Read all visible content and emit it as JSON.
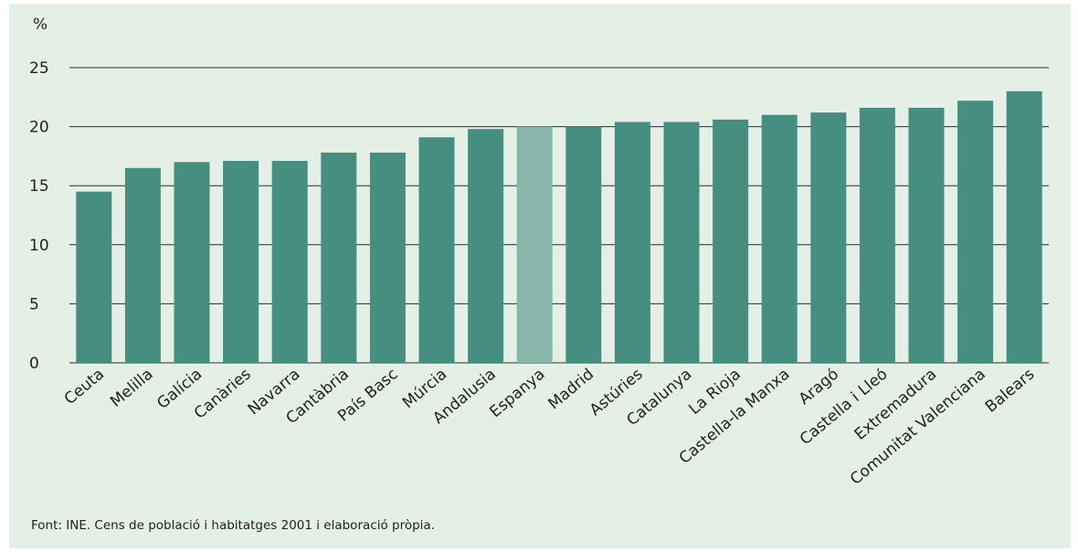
{
  "chart_data": {
    "type": "bar",
    "categories": [
      "Ceuta",
      "Melilla",
      "Galícia",
      "Canàries",
      "Navarra",
      "Cantàbria",
      "País Basc",
      "Múrcia",
      "Andalusia",
      "Espanya",
      "Madrid",
      "Astúries",
      "Catalunya",
      "La Rioja",
      "Castella-la Manxa",
      "Aragó",
      "Castella i Lleó",
      "Extremadura",
      "Comunitat Valenciana",
      "Balears"
    ],
    "values": [
      14.5,
      16.5,
      17.0,
      17.1,
      17.1,
      17.8,
      17.8,
      19.1,
      19.8,
      20.0,
      20.0,
      20.4,
      20.4,
      20.6,
      21.0,
      21.2,
      21.6,
      21.6,
      22.2,
      23.0
    ],
    "highlight": "Espanya",
    "ylabel": "%",
    "ylim": [
      0,
      25
    ],
    "yticks": [
      0,
      5,
      10,
      15,
      20,
      25
    ],
    "grid": true,
    "colors": {
      "bar": "#468e80",
      "highlight": "#88b6aa",
      "background": "#e4f0e6",
      "grid": "#2b2b2b"
    }
  },
  "source_note": "Font: INE. Cens de població i habitatges 2001 i elaboració pròpia."
}
